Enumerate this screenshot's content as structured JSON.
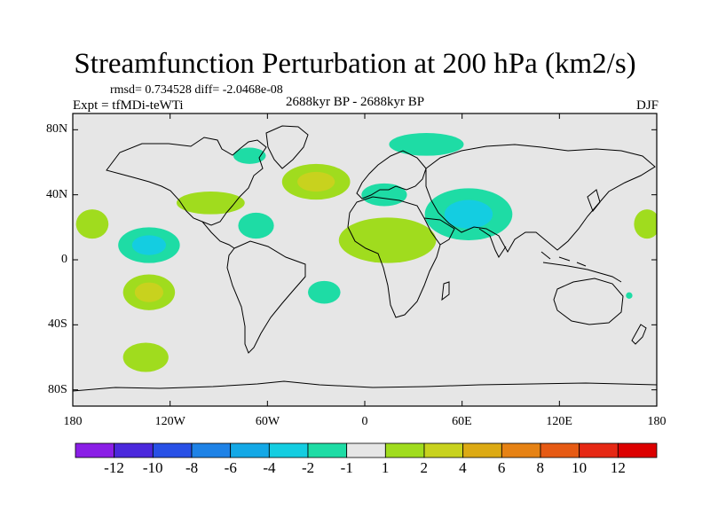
{
  "figure": {
    "title": "Streamfunction Perturbation at 200 hPa (km2/s)",
    "stats": "rmsd= 0.734528 diff= -2.0468e-08",
    "experiment": "Expt = tfMDi-teWTi",
    "period": "2688kyr BP - 2688kyr BP",
    "season": "DJF"
  },
  "chart_data": {
    "type": "filled-contour-map",
    "projection": "cylindrical-equidistant",
    "variable": "streamfunction perturbation",
    "level": "200 hPa",
    "units": "km2/s",
    "lon_range": [
      -180,
      180
    ],
    "lat_range": [
      -90,
      90
    ],
    "x_ticks": [
      {
        "value": -180,
        "label": "180"
      },
      {
        "value": -120,
        "label": "120W"
      },
      {
        "value": -60,
        "label": "60W"
      },
      {
        "value": 0,
        "label": "0"
      },
      {
        "value": 60,
        "label": "60E"
      },
      {
        "value": 120,
        "label": "120E"
      },
      {
        "value": 180,
        "label": "180"
      }
    ],
    "y_ticks": [
      {
        "value": 80,
        "label": "80N"
      },
      {
        "value": 40,
        "label": "40N"
      },
      {
        "value": 0,
        "label": "0"
      },
      {
        "value": -40,
        "label": "40S"
      },
      {
        "value": -80,
        "label": "80S"
      }
    ],
    "colorbar": {
      "labels": [
        "-12",
        "-10",
        "-8",
        "-6",
        "-4",
        "-2",
        "-1",
        "1",
        "2",
        "4",
        "6",
        "8",
        "10",
        "12"
      ],
      "colors": [
        "#8a1ee6",
        "#4b28dc",
        "#2850e6",
        "#1e82e6",
        "#14a8e6",
        "#14cde1",
        "#1edca5",
        "#e6e6e6",
        "#a0dc1e",
        "#c8d21e",
        "#dcaa14",
        "#e68214",
        "#e65a14",
        "#e62814",
        "#dc0000"
      ]
    },
    "anomaly_regions": [
      {
        "lon": -30,
        "lat": 48,
        "rx": 21,
        "ry": 11,
        "levels": [
          1,
          2
        ]
      },
      {
        "lon": -133,
        "lat": 9,
        "rx": 19,
        "ry": 11,
        "levels": [
          -1,
          -2
        ]
      },
      {
        "lon": 64,
        "lat": 28,
        "rx": 27,
        "ry": 16,
        "levels": [
          -1,
          -2
        ]
      },
      {
        "lon": 14,
        "lat": 12,
        "rx": 30,
        "ry": 14,
        "levels": [
          1
        ]
      },
      {
        "lon": 38,
        "lat": 71,
        "rx": 23,
        "ry": 7,
        "levels": [
          -1
        ]
      },
      {
        "lon": -95,
        "lat": 35,
        "rx": 21,
        "ry": 7,
        "levels": [
          1
        ]
      },
      {
        "lon": -168,
        "lat": 22,
        "rx": 10,
        "ry": 9,
        "levels": [
          1
        ]
      },
      {
        "lon": 174,
        "lat": 22,
        "rx": 8,
        "ry": 9,
        "levels": [
          1
        ]
      },
      {
        "lon": -67,
        "lat": 21,
        "rx": 11,
        "ry": 8,
        "levels": [
          -1
        ]
      },
      {
        "lon": 12,
        "lat": 40,
        "rx": 14,
        "ry": 7,
        "levels": [
          -1
        ]
      },
      {
        "lon": -71,
        "lat": 64,
        "rx": 10,
        "ry": 5,
        "levels": [
          -1
        ]
      },
      {
        "lon": -25,
        "lat": -20,
        "rx": 10,
        "ry": 7,
        "levels": [
          -1
        ]
      },
      {
        "lon": -133,
        "lat": -20,
        "rx": 16,
        "ry": 11,
        "levels": [
          1,
          2
        ]
      },
      {
        "lon": -135,
        "lat": -60,
        "rx": 14,
        "ry": 9,
        "levels": [
          1
        ]
      },
      {
        "lon": 163,
        "lat": -22,
        "rx": 2,
        "ry": 2,
        "levels": [
          -1
        ]
      }
    ]
  }
}
